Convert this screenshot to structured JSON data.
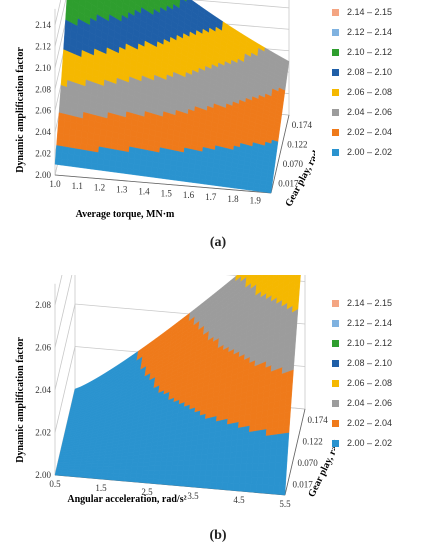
{
  "legend_ranges": [
    {
      "label": "2.14 – 2.15",
      "color": "#f4a582"
    },
    {
      "label": "2.12 – 2.14",
      "color": "#7fb2e0"
    },
    {
      "label": "2.10 – 2.12",
      "color": "#2e9e2e"
    },
    {
      "label": "2.08 – 2.10",
      "color": "#1f5fa8"
    },
    {
      "label": "2.06 – 2.08",
      "color": "#f5b800"
    },
    {
      "label": "2.04 – 2.06",
      "color": "#9c9c9c"
    },
    {
      "label": "2.02 – 2.04",
      "color": "#ef7a1a"
    },
    {
      "label": "2.00 – 2.02",
      "color": "#2a93cf"
    }
  ],
  "chart_data": [
    {
      "type": "surface",
      "panel_label": "(a)",
      "zlabel": "Dynamic amplification factor",
      "xlabel": "Average torque, MN·m",
      "ylabel": "Gear play, rad",
      "x_ticks": [
        "1.0",
        "1.1",
        "1.2",
        "1.3",
        "1.4",
        "1.5",
        "1.6",
        "1.7",
        "1.8",
        "1.9"
      ],
      "y_ticks": [
        "0.017",
        "0.070",
        "0.122",
        "0.174"
      ],
      "z_ticks": [
        "2.00",
        "2.02",
        "2.04",
        "2.06",
        "2.08",
        "2.10",
        "2.12",
        "2.14"
      ],
      "zlim": [
        2.0,
        2.14
      ],
      "surface_corners": {
        "x_min_y_min": 2.01,
        "x_max_y_min": 2.0,
        "x_max_y_max": 2.05,
        "x_min_y_max": 2.145
      }
    },
    {
      "type": "surface",
      "panel_label": "(b)",
      "zlabel": "Dynamic amplification factor",
      "xlabel": "Angular acceleration, rad/s²",
      "ylabel": "Gear play, rad",
      "x_ticks": [
        "0.5",
        "1.5",
        "2.5",
        "3.5",
        "4.5",
        "5.5"
      ],
      "y_ticks": [
        "0.017",
        "0.070",
        "0.122",
        "0.174"
      ],
      "z_ticks": [
        "2.00",
        "2.02",
        "2.04",
        "2.06",
        "2.08"
      ],
      "zlim": [
        2.0,
        2.08
      ],
      "surface_corners": {
        "x_min_y_min": 2.0,
        "x_max_y_min": 2.0,
        "x_max_y_max": 2.09,
        "x_min_y_max": 2.0
      }
    }
  ]
}
